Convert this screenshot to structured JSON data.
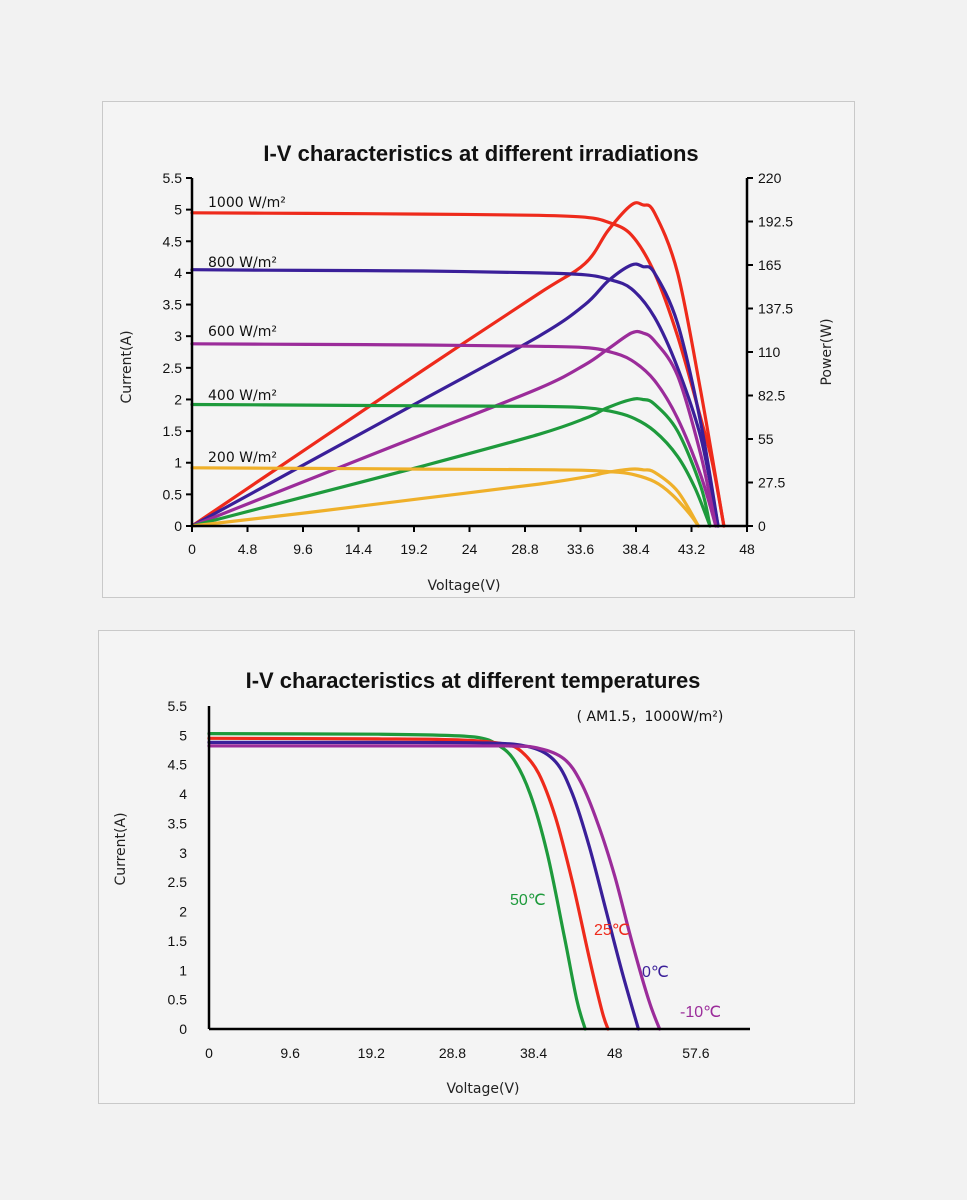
{
  "chart_data": [
    {
      "type": "line",
      "title": "I-V characteristics at different irradiations",
      "xlabel": "Voltage(V)",
      "ylabel": "Current(A)",
      "y2label": "Power(W)",
      "xlim": [
        0,
        48
      ],
      "ylim": [
        0,
        5.5
      ],
      "y2lim": [
        0,
        220
      ],
      "x_ticks": [
        "0",
        "4.8",
        "9.6",
        "14.4",
        "19.2",
        "24",
        "28.8",
        "33.6",
        "38.4",
        "43.2",
        "48"
      ],
      "y_ticks": [
        "0",
        "0.5",
        "1",
        "1.5",
        "2",
        "2.5",
        "3",
        "3.5",
        "4",
        "4.5",
        "5",
        "5.5"
      ],
      "y2_ticks": [
        "0",
        "27.5",
        "55",
        "82.5",
        "110",
        "137.5",
        "165",
        "192.5",
        "220"
      ],
      "grid": false,
      "series": [
        {
          "name": "1000 W/m²",
          "color": "#ee2a1b",
          "iv": [
            [
              0,
              4.95
            ],
            [
              10,
              4.94
            ],
            [
              20,
              4.93
            ],
            [
              30,
              4.91
            ],
            [
              34,
              4.88
            ],
            [
              36,
              4.8
            ],
            [
              38,
              4.6
            ],
            [
              40,
              4.0
            ],
            [
              42,
              3.0
            ],
            [
              44,
              1.7
            ],
            [
              45,
              1.0
            ],
            [
              46,
              0.0
            ]
          ],
          "power": [
            [
              0,
              0
            ],
            [
              10,
              49.4
            ],
            [
              20,
              98.6
            ],
            [
              30,
              147
            ],
            [
              34,
              166
            ],
            [
              36,
              187
            ],
            [
              38,
              203
            ],
            [
              39,
              203
            ],
            [
              40,
              198
            ],
            [
              42,
              160
            ],
            [
              44,
              85
            ],
            [
              46,
              0
            ]
          ]
        },
        {
          "name": "800 W/m²",
          "color": "#3a1f99",
          "iv": [
            [
              0,
              4.05
            ],
            [
              10,
              4.04
            ],
            [
              20,
              4.03
            ],
            [
              30,
              4.0
            ],
            [
              34,
              3.97
            ],
            [
              36,
              3.9
            ],
            [
              38,
              3.75
            ],
            [
              40,
              3.3
            ],
            [
              42,
              2.5
            ],
            [
              44,
              1.4
            ],
            [
              45.5,
              0.0
            ]
          ],
          "power": [
            [
              0,
              0
            ],
            [
              10,
              40
            ],
            [
              20,
              80
            ],
            [
              30,
              120
            ],
            [
              34,
              140
            ],
            [
              36,
              155
            ],
            [
              38,
              165
            ],
            [
              39,
              164
            ],
            [
              40,
              160
            ],
            [
              42,
              128
            ],
            [
              44,
              65
            ],
            [
              45.5,
              0
            ]
          ]
        },
        {
          "name": "600 W/m²",
          "color": "#9b2c9a",
          "iv": [
            [
              0,
              2.88
            ],
            [
              10,
              2.87
            ],
            [
              20,
              2.86
            ],
            [
              30,
              2.84
            ],
            [
              34,
              2.82
            ],
            [
              36,
              2.76
            ],
            [
              38,
              2.62
            ],
            [
              40,
              2.3
            ],
            [
              42,
              1.7
            ],
            [
              44,
              0.8
            ],
            [
              45.3,
              0.0
            ]
          ],
          "power": [
            [
              0,
              0
            ],
            [
              10,
              29
            ],
            [
              20,
              58
            ],
            [
              30,
              87
            ],
            [
              34,
              102
            ],
            [
              36,
              112
            ],
            [
              38,
              122
            ],
            [
              39,
              122
            ],
            [
              40,
              117
            ],
            [
              42,
              95
            ],
            [
              44,
              45
            ],
            [
              45.3,
              0
            ]
          ]
        },
        {
          "name": "400 W/m²",
          "color": "#1e9a3c",
          "iv": [
            [
              0,
              1.92
            ],
            [
              10,
              1.91
            ],
            [
              20,
              1.9
            ],
            [
              30,
              1.89
            ],
            [
              34,
              1.87
            ],
            [
              36,
              1.82
            ],
            [
              38,
              1.72
            ],
            [
              40,
              1.5
            ],
            [
              42,
              1.1
            ],
            [
              43.5,
              0.6
            ],
            [
              44.8,
              0.0
            ]
          ],
          "power": [
            [
              0,
              0
            ],
            [
              10,
              19
            ],
            [
              20,
              38
            ],
            [
              30,
              58
            ],
            [
              34,
              68
            ],
            [
              36,
              75
            ],
            [
              38,
              80
            ],
            [
              39,
              80
            ],
            [
              40,
              77
            ],
            [
              42,
              60
            ],
            [
              44,
              25
            ],
            [
              44.8,
              0
            ]
          ]
        },
        {
          "name": "200 W/m²",
          "color": "#efb02a",
          "iv": [
            [
              0,
              0.92
            ],
            [
              10,
              0.91
            ],
            [
              20,
              0.9
            ],
            [
              30,
              0.89
            ],
            [
              34,
              0.88
            ],
            [
              36,
              0.86
            ],
            [
              38,
              0.82
            ],
            [
              40,
              0.7
            ],
            [
              41.5,
              0.5
            ],
            [
              43,
              0.2
            ],
            [
              43.8,
              0.0
            ]
          ],
          "power": [
            [
              0,
              0
            ],
            [
              10,
              8.5
            ],
            [
              20,
              17.5
            ],
            [
              30,
              26.5
            ],
            [
              34,
              31
            ],
            [
              36,
              34
            ],
            [
              38,
              36
            ],
            [
              39,
              35.5
            ],
            [
              40,
              34
            ],
            [
              42,
              22
            ],
            [
              43.8,
              0
            ]
          ]
        }
      ]
    },
    {
      "type": "line",
      "title": "I-V characteristics at different temperatures",
      "subtitle": "( AM1.5，1000W/m²)",
      "xlabel": "Voltage(V)",
      "ylabel": "Current(A)",
      "xlim": [
        0,
        64
      ],
      "ylim": [
        0,
        5.5
      ],
      "x_ticks": [
        "0",
        "9.6",
        "19.2",
        "28.8",
        "38.4",
        "48",
        "57.6"
      ],
      "y_ticks": [
        "0",
        "0.5",
        "1",
        "1.5",
        "2",
        "2.5",
        "3",
        "3.5",
        "4",
        "4.5",
        "5",
        "5.5"
      ],
      "grid": false,
      "series": [
        {
          "name": "50℃",
          "color": "#1e9a3c",
          "iv": [
            [
              0,
              5.03
            ],
            [
              20,
              5.02
            ],
            [
              28,
              5.0
            ],
            [
              32,
              4.96
            ],
            [
              34,
              4.85
            ],
            [
              36,
              4.6
            ],
            [
              38,
              4.0
            ],
            [
              40,
              3.0
            ],
            [
              42,
              1.6
            ],
            [
              43.5,
              0.5
            ],
            [
              44.5,
              0.0
            ]
          ]
        },
        {
          "name": "25℃",
          "color": "#ee2a1b",
          "iv": [
            [
              0,
              4.95
            ],
            [
              20,
              4.94
            ],
            [
              30,
              4.92
            ],
            [
              35,
              4.85
            ],
            [
              37,
              4.72
            ],
            [
              39,
              4.35
            ],
            [
              41,
              3.6
            ],
            [
              43,
              2.5
            ],
            [
              45,
              1.2
            ],
            [
              46.5,
              0.3
            ],
            [
              47.2,
              0.0
            ]
          ]
        },
        {
          "name": "0℃",
          "color": "#3a1f99",
          "iv": [
            [
              0,
              4.88
            ],
            [
              20,
              4.88
            ],
            [
              33,
              4.87
            ],
            [
              38,
              4.8
            ],
            [
              41,
              4.55
            ],
            [
              43,
              4.0
            ],
            [
              45,
              3.1
            ],
            [
              47,
              2.0
            ],
            [
              49,
              0.9
            ],
            [
              50.8,
              0.0
            ]
          ]
        },
        {
          "name": "-10℃",
          "color": "#9b2c9a",
          "iv": [
            [
              0,
              4.82
            ],
            [
              20,
              4.82
            ],
            [
              35,
              4.82
            ],
            [
              39,
              4.78
            ],
            [
              42,
              4.6
            ],
            [
              44,
              4.2
            ],
            [
              46,
              3.5
            ],
            [
              48,
              2.6
            ],
            [
              50,
              1.5
            ],
            [
              52,
              0.5
            ],
            [
              53.3,
              0.0
            ]
          ]
        }
      ]
    }
  ]
}
